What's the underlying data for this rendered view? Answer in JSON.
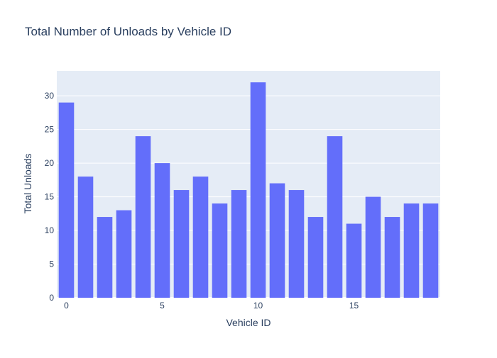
{
  "chart_data": {
    "type": "bar",
    "title": "Total Number of Unloads by Vehicle ID",
    "xlabel": "Vehicle ID",
    "ylabel": "Total Unloads",
    "x": [
      0,
      1,
      2,
      3,
      4,
      5,
      6,
      7,
      8,
      9,
      10,
      11,
      12,
      13,
      14,
      15,
      16,
      17,
      18,
      19
    ],
    "values": [
      29,
      18,
      12,
      13,
      24,
      20,
      16,
      18,
      14,
      16,
      32,
      17,
      16,
      12,
      24,
      11,
      15,
      12,
      14,
      14
    ],
    "xticks": [
      0,
      5,
      10,
      15
    ],
    "yticks": [
      0,
      5,
      10,
      15,
      20,
      25,
      30
    ],
    "ylim": [
      0,
      33.7
    ],
    "xlim": [
      -0.5,
      19.5
    ],
    "grid": true,
    "legend": "none",
    "colors": {
      "bar": "#636efa",
      "plot_bg": "#e5ecf6",
      "grid": "#ffffff",
      "text": "#2a3f5f"
    }
  }
}
